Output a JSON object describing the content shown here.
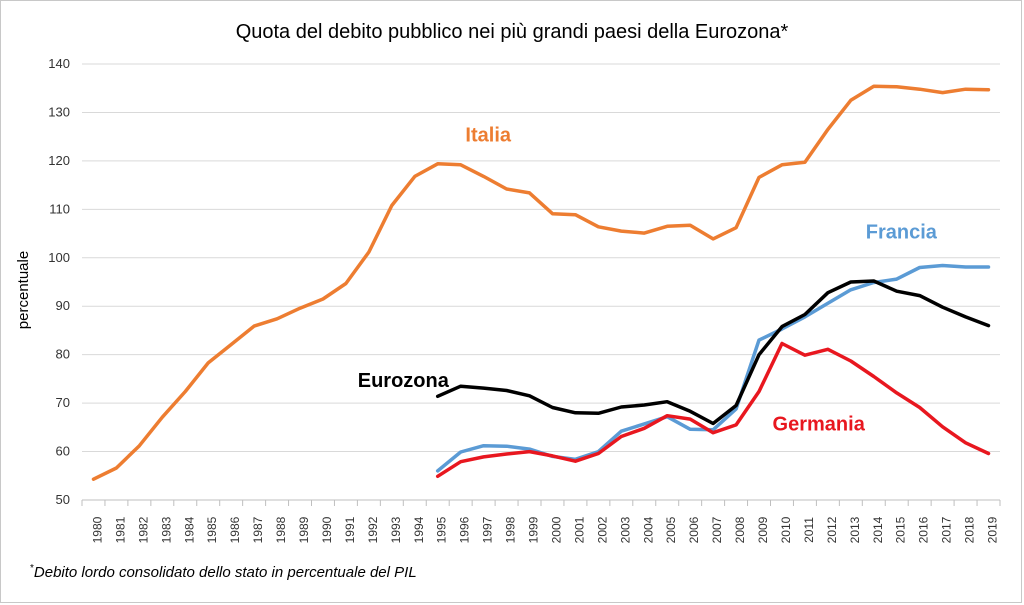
{
  "chart_data": {
    "type": "line",
    "title": "Quota del debito pubblico nei più grandi paesi della Eurozona*",
    "xlabel": "",
    "ylabel": "percentuale",
    "ylim": [
      50,
      140
    ],
    "yticks": [
      50,
      60,
      70,
      80,
      90,
      100,
      110,
      120,
      130,
      140
    ],
    "grid": true,
    "x": [
      1980,
      1981,
      1982,
      1983,
      1984,
      1985,
      1986,
      1987,
      1988,
      1989,
      1990,
      1991,
      1992,
      1993,
      1994,
      1995,
      1996,
      1997,
      1998,
      1999,
      2000,
      2001,
      2002,
      2003,
      2004,
      2005,
      2006,
      2007,
      2008,
      2009,
      2010,
      2011,
      2012,
      2013,
      2014,
      2015,
      2016,
      2017,
      2018,
      2019
    ],
    "series": [
      {
        "name": "Italia",
        "color": "#ED7D31",
        "values": [
          54.3,
          56.6,
          61.2,
          67.1,
          72.4,
          78.3,
          82.1,
          85.9,
          87.4,
          89.6,
          91.5,
          94.7,
          101.2,
          110.8,
          116.8,
          119.4,
          119.2,
          116.8,
          114.2,
          113.4,
          109.1,
          108.9,
          106.4,
          105.5,
          105.1,
          106.5,
          106.7,
          103.9,
          106.2,
          116.6,
          119.2,
          119.7,
          126.5,
          132.5,
          135.4,
          135.3,
          134.8,
          134.1,
          134.8,
          134.7
        ]
      },
      {
        "name": "Francia",
        "color": "#5B9BD5",
        "values": [
          null,
          null,
          null,
          null,
          null,
          null,
          null,
          null,
          null,
          null,
          null,
          null,
          null,
          null,
          null,
          56.0,
          59.9,
          61.2,
          61.1,
          60.5,
          59.0,
          58.4,
          60.0,
          64.2,
          65.7,
          67.2,
          64.6,
          64.5,
          68.8,
          83.0,
          85.3,
          87.8,
          90.6,
          93.4,
          94.9,
          95.6,
          98.0,
          98.4,
          98.1,
          98.1
        ]
      },
      {
        "name": "Eurozona",
        "color": "#000000",
        "values": [
          null,
          null,
          null,
          null,
          null,
          null,
          null,
          null,
          null,
          null,
          null,
          null,
          null,
          null,
          null,
          71.4,
          73.5,
          73.1,
          72.6,
          71.5,
          69.1,
          68.0,
          67.9,
          69.2,
          69.6,
          70.3,
          68.3,
          65.8,
          69.5,
          80.0,
          85.8,
          88.3,
          92.8,
          95.0,
          95.2,
          93.1,
          92.2,
          89.8,
          87.8,
          86.0
        ]
      },
      {
        "name": "Germania",
        "color": "#E8171F",
        "values": [
          null,
          null,
          null,
          null,
          null,
          null,
          null,
          null,
          null,
          null,
          null,
          null,
          null,
          null,
          null,
          54.9,
          57.9,
          58.9,
          59.5,
          60.0,
          59.1,
          58.0,
          59.6,
          63.1,
          64.8,
          67.4,
          66.7,
          63.9,
          65.5,
          72.4,
          82.3,
          79.9,
          81.1,
          78.7,
          75.5,
          72.1,
          69.1,
          65.1,
          61.8,
          59.6
        ]
      }
    ],
    "annotations": [
      "Italia",
      "Francia",
      "Eurozona",
      "Germania"
    ]
  },
  "footnote": {
    "marker": "*",
    "text": "Debito lordo consolidato dello stato in percentuale del PIL"
  }
}
